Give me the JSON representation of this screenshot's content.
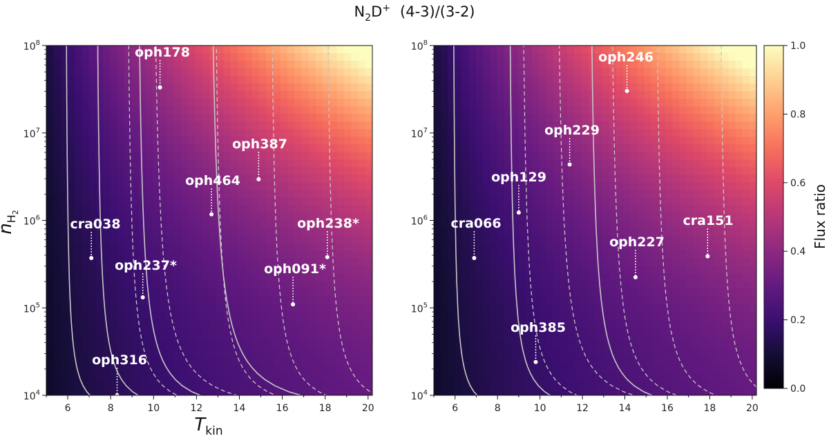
{
  "figure": {
    "title": {
      "main": "N",
      "sub": "2",
      "main2": "D",
      "sup": "+",
      "rest": "(4-3)/(3-2)"
    }
  },
  "chart_data": [
    {
      "type": "heatmap",
      "panel": "left",
      "xlabel": {
        "main": "T",
        "sub": "kin"
      },
      "ylabel": {
        "main": "n",
        "sub": "H",
        "subsub": "2"
      },
      "xlim": [
        5,
        20.2
      ],
      "ylim_log10": [
        4,
        8
      ],
      "xticks": [
        6,
        8,
        10,
        12,
        14,
        16,
        18,
        20
      ],
      "yticks": [
        {
          "base": "10",
          "exp": "4"
        },
        {
          "base": "10",
          "exp": "5"
        },
        {
          "base": "10",
          "exp": "6"
        },
        {
          "base": "10",
          "exp": "7"
        },
        {
          "base": "10",
          "exp": "8"
        }
      ],
      "sources": [
        {
          "name": "oph178",
          "t": 10.3,
          "logn": 7.52
        },
        {
          "name": "oph387",
          "t": 14.9,
          "logn": 6.47
        },
        {
          "name": "oph464",
          "t": 12.7,
          "logn": 6.07
        },
        {
          "name": "cra038",
          "t": 7.1,
          "logn": 5.57
        },
        {
          "name": "oph238*",
          "t": 18.1,
          "logn": 5.58
        },
        {
          "name": "oph237*",
          "t": 9.5,
          "logn": 5.12
        },
        {
          "name": "oph091*",
          "t": 16.5,
          "logn": 5.04
        },
        {
          "name": "oph316",
          "t": 8.3,
          "logn": 4.0
        }
      ]
    },
    {
      "type": "heatmap",
      "panel": "right",
      "xlim": [
        5,
        20.2
      ],
      "ylim_log10": [
        4,
        8
      ],
      "xticks": [
        6,
        8,
        10,
        12,
        14,
        16,
        18,
        20
      ],
      "yticks": [
        {
          "base": "10",
          "exp": "4"
        },
        {
          "base": "10",
          "exp": "5"
        },
        {
          "base": "10",
          "exp": "6"
        },
        {
          "base": "10",
          "exp": "7"
        },
        {
          "base": "10",
          "exp": "8"
        }
      ],
      "sources": [
        {
          "name": "oph246",
          "t": 14.1,
          "logn": 7.48
        },
        {
          "name": "oph229",
          "t": 11.4,
          "logn": 6.64
        },
        {
          "name": "oph129",
          "t": 9.0,
          "logn": 6.09
        },
        {
          "name": "cra066",
          "t": 6.9,
          "logn": 5.57
        },
        {
          "name": "cra151",
          "t": 17.9,
          "logn": 5.59
        },
        {
          "name": "oph227",
          "t": 14.5,
          "logn": 5.35
        },
        {
          "name": "oph385",
          "t": 9.8,
          "logn": 4.38
        }
      ]
    }
  ],
  "colorbar": {
    "label": "Flux ratio",
    "range": [
      0,
      1
    ],
    "ticks": [
      "0.0",
      "0.2",
      "0.4",
      "0.6",
      "0.8",
      "1.0"
    ]
  }
}
